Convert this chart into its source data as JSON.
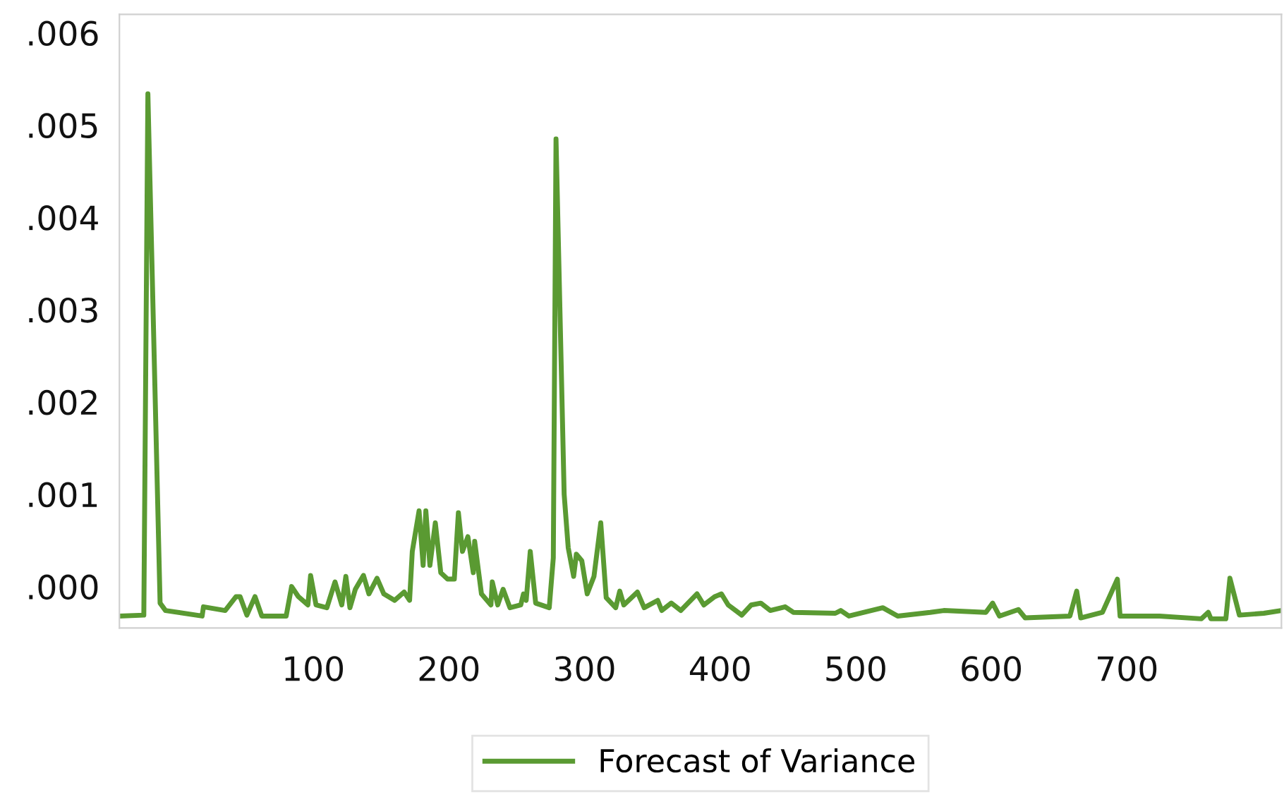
{
  "chart_data": {
    "type": "line",
    "x": [
      -43,
      -25,
      -22,
      -13,
      -9,
      18,
      19,
      35,
      43,
      46,
      51,
      57,
      62,
      80,
      84,
      89,
      96,
      98,
      102,
      110,
      116,
      121,
      124,
      127,
      131,
      137,
      141,
      147,
      152,
      160,
      167,
      171,
      173,
      178,
      181,
      183,
      186,
      190,
      194,
      199,
      204,
      207,
      210,
      214,
      218,
      219,
      224,
      231,
      232,
      236,
      240,
      245,
      253,
      255,
      257,
      260,
      264,
      274,
      277,
      279,
      285,
      288,
      292,
      294,
      298,
      302,
      307,
      312,
      316,
      323,
      326,
      329,
      339,
      344,
      354,
      357,
      364,
      371,
      383,
      388,
      396,
      401,
      406,
      416,
      423,
      430,
      437,
      448,
      454,
      485,
      489,
      495,
      520,
      531,
      555,
      565,
      596,
      601,
      606,
      620,
      625,
      658,
      663,
      666,
      682,
      693,
      695,
      724,
      755,
      760,
      762,
      773,
      776,
      783,
      801,
      814
    ],
    "series": [
      {
        "name": "Forecast of Variance",
        "color": "#5a9a32",
        "values": [
          -0.00032,
          -0.00031,
          0.00534,
          -0.00018,
          -0.00026,
          -0.00032,
          -0.00022,
          -0.00026,
          -0.00011,
          -0.00011,
          -0.00031,
          -0.00011,
          -0.00032,
          -0.00032,
          0,
          -0.00011,
          -0.0002,
          0.00012,
          -0.0002,
          -0.00023,
          5e-05,
          -0.0002,
          0.00011,
          -0.00023,
          -3e-05,
          0.00012,
          -8e-05,
          9e-05,
          -8e-05,
          -0.00015,
          -6e-05,
          -0.00015,
          0.00038,
          0.00082,
          0.00023,
          0.00082,
          0.00023,
          0.00069,
          0.00015,
          8e-05,
          8e-05,
          0.0008,
          0.00038,
          0.00054,
          0.00015,
          0.00049,
          -8e-05,
          -0.0002,
          5e-05,
          -0.0002,
          -3e-05,
          -0.00023,
          -0.0002,
          -8e-05,
          -0.00015,
          0.00038,
          -0.00018,
          -0.00023,
          0.00031,
          0.00485,
          0.001,
          0.00042,
          0.00011,
          0.00035,
          0.00028,
          -8e-05,
          0.00011,
          0.00069,
          -0.00012,
          -0.00023,
          -5e-05,
          -0.0002,
          -6e-05,
          -0.00023,
          -0.00015,
          -0.00026,
          -0.00018,
          -0.00026,
          -8e-05,
          -0.0002,
          -0.00011,
          -8e-05,
          -0.0002,
          -0.00031,
          -0.0002,
          -0.00018,
          -0.00026,
          -0.00022,
          -0.00028,
          -0.00029,
          -0.00026,
          -0.00032,
          -0.00023,
          -0.00032,
          -0.00028,
          -0.00026,
          -0.00028,
          -0.00018,
          -0.00032,
          -0.00025,
          -0.00034,
          -0.00032,
          -5e-05,
          -0.00034,
          -0.00028,
          8e-05,
          -0.00032,
          -0.00032,
          -0.00035,
          -0.00028,
          -0.00035,
          -0.00035,
          9e-05,
          -0.00031,
          -0.00029,
          -0.00026
        ]
      }
    ],
    "xlim": [
      -43,
      814
    ],
    "ylim": [
      -0.00045,
      0.0062
    ],
    "xticks": [
      100,
      200,
      300,
      400,
      500,
      600,
      700
    ],
    "yticks": [
      {
        "value": 0,
        "label": ".000"
      },
      {
        "value": 0.001,
        "label": ".001"
      },
      {
        "value": 0.002,
        "label": ".002"
      },
      {
        "value": 0.003,
        "label": ".003"
      },
      {
        "value": 0.004,
        "label": ".004"
      },
      {
        "value": 0.005,
        "label": ".005"
      },
      {
        "value": 0.006,
        "label": ".006"
      }
    ],
    "legend": "bottom",
    "line_style": "solid",
    "marker": "none"
  }
}
